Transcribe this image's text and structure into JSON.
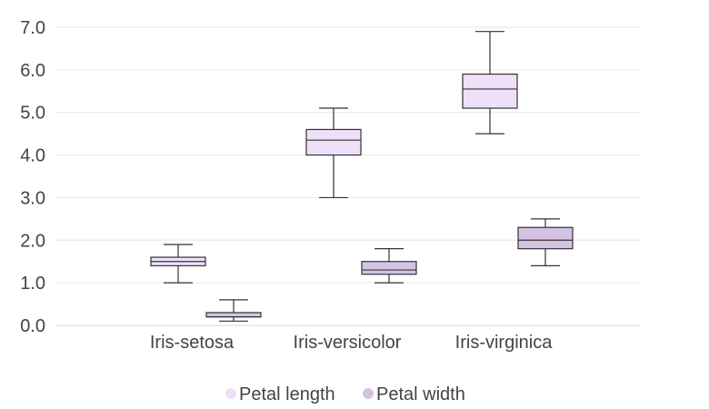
{
  "chart_data": {
    "type": "boxplot",
    "categories": [
      "Iris-setosa",
      "Iris-versicolor",
      "Iris-virginica"
    ],
    "ylim": [
      0,
      7
    ],
    "yticks": [
      "0.0",
      "1.0",
      "2.0",
      "3.0",
      "4.0",
      "5.0",
      "6.0",
      "7.0"
    ],
    "grid": true,
    "legend_position": "bottom",
    "series": [
      {
        "name": "Petal length",
        "color": "#efe0fa",
        "boxes": [
          {
            "min": 1.0,
            "q1": 1.4,
            "median": 1.5,
            "q3": 1.6,
            "max": 1.9
          },
          {
            "min": 3.0,
            "q1": 4.0,
            "median": 4.35,
            "q3": 4.6,
            "max": 5.1
          },
          {
            "min": 4.5,
            "q1": 5.1,
            "median": 5.55,
            "q3": 5.9,
            "max": 6.9
          }
        ]
      },
      {
        "name": "Petal width",
        "color": "#d4c3e3",
        "boxes": [
          {
            "min": 0.1,
            "q1": 0.2,
            "median": 0.2,
            "q3": 0.3,
            "max": 0.6
          },
          {
            "min": 1.0,
            "q1": 1.2,
            "median": 1.3,
            "q3": 1.5,
            "max": 1.8
          },
          {
            "min": 1.4,
            "q1": 1.8,
            "median": 2.0,
            "q3": 2.3,
            "max": 2.5
          }
        ]
      }
    ]
  }
}
